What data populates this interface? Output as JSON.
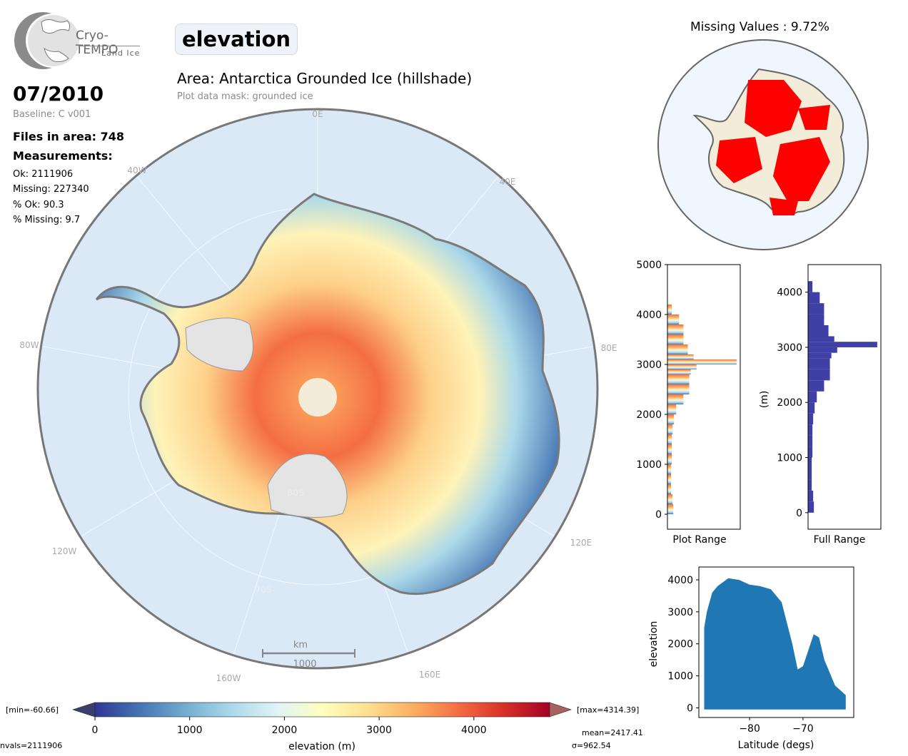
{
  "header": {
    "logo_title": "Cryo-TEMPO",
    "logo_subtitle": "Land Ice",
    "parameter": "elevation",
    "area_title": "Area: Antarctica Grounded Ice (hillshade)",
    "mask_note": "Plot data mask: grounded ice"
  },
  "info": {
    "date": "07/2010",
    "baseline": "Baseline: C v001",
    "files": "Files in area: 748",
    "measurements_heading": "Measurements:",
    "ok": "Ok: 2111906",
    "missing": "Missing: 227340",
    "pct_ok": "% Ok: 90.3",
    "pct_missing": "% Missing: 9.7"
  },
  "map": {
    "lon_labels": [
      "0E",
      "40W",
      "40E",
      "80W",
      "80E",
      "120W",
      "120E",
      "160W",
      "160E"
    ],
    "lat_labels": [
      "80S",
      "70S"
    ],
    "scale_label_top": "km",
    "scale_label_bottom": "1000"
  },
  "colorbar": {
    "min_label": "[min=-60.66]",
    "max_label": "[max=4314.39]",
    "ticks": [
      "0",
      "1000",
      "2000",
      "3000",
      "4000"
    ],
    "xlabel": "elevation (m)",
    "nvals": "nvals=2111906",
    "mean": "mean=2417.41",
    "sigma": "σ=962.54",
    "colors": [
      "#313695",
      "#4575b4",
      "#74add1",
      "#abd9e9",
      "#e0f3f8",
      "#ffffbf",
      "#fee090",
      "#fdae61",
      "#f46d43",
      "#d73027",
      "#a50026"
    ]
  },
  "missing_map": {
    "title": "Missing Values : 9.72%",
    "missing_color": "#ff0000",
    "land_color": "#f2ecd8"
  },
  "chart_data": [
    {
      "type": "bar",
      "orientation": "horizontal",
      "name": "histogram",
      "xlabel": "Plot Range",
      "ylabel": "",
      "ylim": [
        -300,
        5000
      ],
      "yticks": [
        "0",
        "1000",
        "2000",
        "3000",
        "4000",
        "5000"
      ],
      "bins": [
        0,
        200,
        400,
        600,
        800,
        1000,
        1200,
        1400,
        1600,
        1800,
        2000,
        2200,
        2400,
        2600,
        2800,
        2900,
        3000,
        3100,
        3200,
        3400,
        3600,
        3800,
        4000
      ],
      "values": [
        0.08,
        0.07,
        0.05,
        0.05,
        0.05,
        0.06,
        0.06,
        0.06,
        0.07,
        0.09,
        0.12,
        0.22,
        0.3,
        0.3,
        0.32,
        0.4,
        0.95,
        0.36,
        0.28,
        0.22,
        0.22,
        0.16,
        0.06
      ]
    },
    {
      "type": "bar",
      "orientation": "horizontal",
      "name": "histogram",
      "xlabel": "Full Range",
      "ylabel": "(m)",
      "ylim": [
        -300,
        4500
      ],
      "yticks": [
        "0",
        "1000",
        "2000",
        "3000",
        "4000"
      ],
      "bins": [
        0,
        200,
        400,
        600,
        800,
        1000,
        1200,
        1400,
        1600,
        1800,
        2000,
        2200,
        2400,
        2600,
        2800,
        2900,
        3000,
        3100,
        3200,
        3400,
        3600,
        3800,
        4000
      ],
      "values": [
        0.08,
        0.07,
        0.05,
        0.05,
        0.05,
        0.06,
        0.06,
        0.06,
        0.07,
        0.09,
        0.12,
        0.22,
        0.3,
        0.3,
        0.32,
        0.4,
        0.95,
        0.36,
        0.28,
        0.22,
        0.22,
        0.16,
        0.06
      ],
      "color": "#3f3fa5"
    },
    {
      "type": "scatter",
      "name": "elevation vs latitude",
      "xlabel": "Latitude (degs)",
      "ylabel": "elevation",
      "xlim": [
        -89.5,
        -60.5
      ],
      "ylim": [
        -300,
        4400
      ],
      "xticks": [
        "−80",
        "−70"
      ],
      "yticks": [
        "0",
        "1000",
        "2000",
        "3000",
        "4000"
      ],
      "color": "#1f77b4"
    }
  ]
}
